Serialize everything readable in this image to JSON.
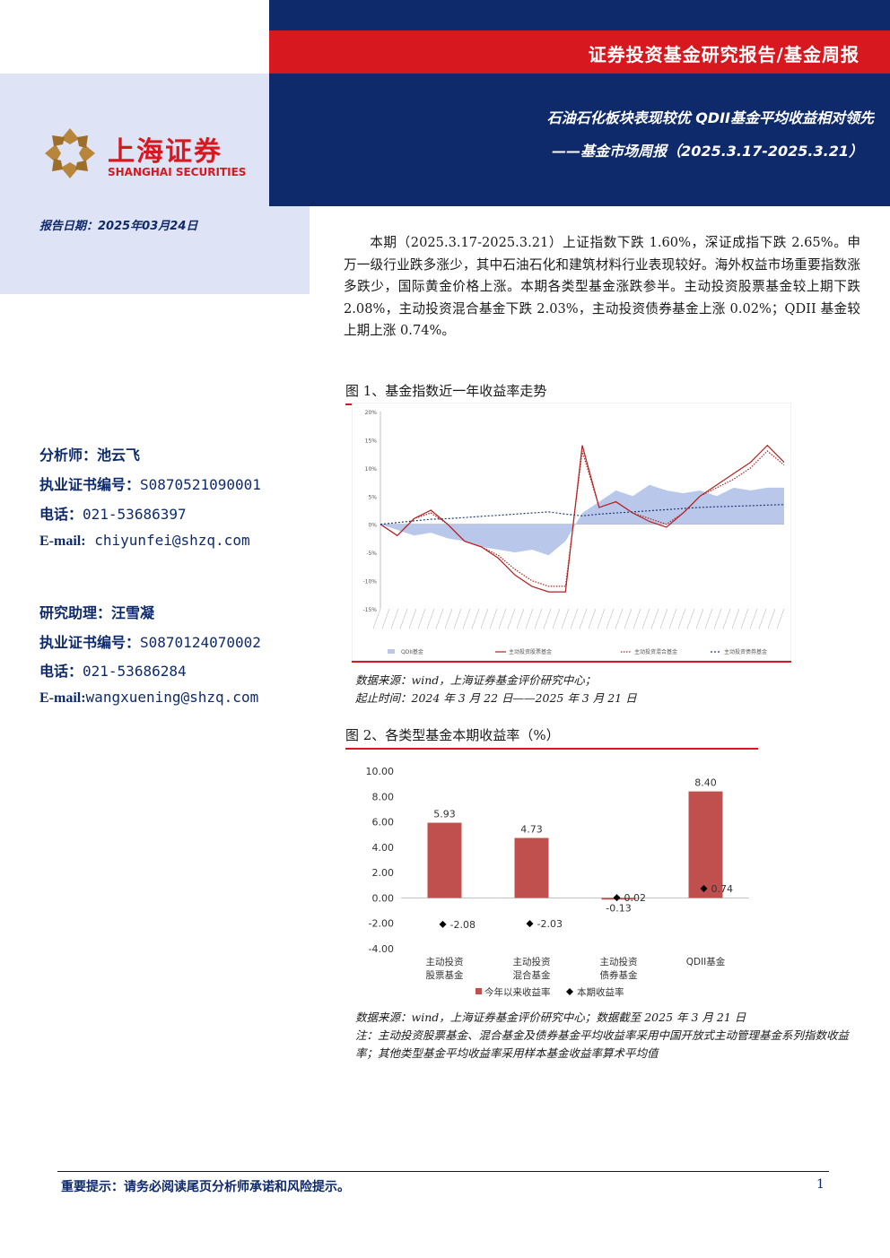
{
  "header": {
    "series_label": "证券投资基金研究报告/基金周报",
    "title": "石油石化板块表现较优 QDII基金平均收益相对领先",
    "subtitle": "——基金市场周报（2025.3.17-2025.3.21）",
    "brand_color": "#0f2a6b",
    "accent_color": "#d7191f"
  },
  "logo": {
    "name_cn": "上海证券",
    "name_en": "SHANGHAI SECURITIES"
  },
  "report_date": "报告日期：2025年03月24日",
  "analysts": [
    {
      "role": "分析师：",
      "name": "池云飞",
      "cert_label": "执业证书编号：",
      "cert": "S0870521090001",
      "phone_label": "电话：",
      "phone": "021-53686397",
      "email_label": "E-mail:",
      "email": "chiyunfei@shzq.com"
    },
    {
      "role": "研究助理：",
      "name": "汪雪凝",
      "cert_label": "执业证书编号：",
      "cert": "S0870124070002",
      "phone_label": "电话：",
      "phone": "021-53686284",
      "email_label": "E-mail:",
      "email": "wangxuening@shzq.com"
    }
  ],
  "summary": "本期（2025.3.17-2025.3.21）上证指数下跌 1.60%，深证成指下跌 2.65%。申万一级行业跌多涨少，其中石油石化和建筑材料行业表现较好。海外权益市场重要指数涨多跌少，国际黄金价格上涨。本期各类型基金涨跌参半。主动投资股票基金较上期下跌 2.08%，主动投资混合基金下跌 2.03%，主动投资债券基金上涨 0.02%；QDII 基金较上期上涨 0.74%。",
  "figure1": {
    "title": "图 1、基金指数近一年收益率走势",
    "source": "数据来源：wind，上海证券基金评价研究中心；",
    "period": "起止时间：2024 年 3 月 22 日——2025 年 3 月 21 日"
  },
  "figure2": {
    "title": "图 2、各类型基金本期收益率（%）",
    "source": "数据来源：wind，上海证券基金评价研究中心；数据截至 2025 年 3 月 21 日",
    "note": "注：主动投资股票基金、混合基金及债券基金平均收益率采用中国开放式主动管理基金系列指数收益率；其他类型基金平均收益率采用样本基金收益率算术平均值"
  },
  "chart_data": [
    {
      "type": "line",
      "title": "",
      "yticks": [
        "20%",
        "15%",
        "10%",
        "5%",
        "0%",
        "-5%",
        "-10%",
        "-15%"
      ],
      "ylim": [
        -15,
        20
      ],
      "series": [
        {
          "name": "QDII基金",
          "style": "area",
          "color": "#b9c8ea",
          "values": [
            0,
            -1,
            -2,
            -1.5,
            -2.5,
            -3,
            -4,
            -4.5,
            -5,
            -4.5,
            -5.5,
            -3,
            2,
            4,
            6,
            5,
            7,
            6,
            5.5,
            6,
            5,
            6.5,
            6,
            6.5,
            6.5
          ]
        },
        {
          "name": "主动投资股票基金",
          "style": "solid",
          "color": "#b22222",
          "values": [
            0,
            -2,
            1,
            2.5,
            0,
            -3,
            -4,
            -6,
            -9,
            -11,
            -12,
            -12,
            14,
            3,
            4,
            2,
            0.5,
            -0.5,
            2,
            5,
            7,
            9,
            11,
            14,
            11
          ]
        },
        {
          "name": "主动投资混合基金",
          "style": "dotted",
          "color": "#b22222",
          "values": [
            0,
            -2,
            1,
            2,
            0,
            -3,
            -4,
            -5.5,
            -8,
            -10,
            -11,
            -11,
            13,
            3,
            4,
            2,
            1,
            0,
            2,
            5,
            6.5,
            8,
            10,
            13,
            10.5
          ]
        },
        {
          "name": "主动投资债券基金",
          "style": "dashed",
          "color": "#1f3a7a",
          "values": [
            0,
            0.3,
            0.6,
            0.9,
            1,
            1.2,
            1.4,
            1.6,
            1.8,
            2,
            2.2,
            1.8,
            1.5,
            1.8,
            2,
            2.2,
            2.4,
            2.6,
            2.8,
            3,
            3.1,
            3.2,
            3.3,
            3.4,
            3.5
          ]
        }
      ]
    },
    {
      "type": "bar",
      "title": "",
      "categories": [
        [
          "主动投资",
          "股票基金"
        ],
        [
          "主动投资",
          "混合基金"
        ],
        [
          "主动投资",
          "债券基金"
        ],
        [
          "QDII基金"
        ]
      ],
      "ylim": [
        -4,
        10
      ],
      "yticks": [
        "10.00",
        "8.00",
        "6.00",
        "4.00",
        "2.00",
        "0.00",
        "-2.00",
        "-4.00"
      ],
      "series": [
        {
          "name": "今年以来收益率",
          "style": "bar",
          "color": "#c0504d",
          "values": [
            5.93,
            4.73,
            -0.13,
            8.4
          ],
          "labels": [
            "5.93",
            "4.73",
            "-0.13",
            "8.40"
          ]
        },
        {
          "name": "本期收益率",
          "style": "marker",
          "color": "#000000",
          "values": [
            -2.08,
            -2.03,
            0.02,
            0.74
          ],
          "labels": [
            "-2.08",
            "-2.03",
            "0.02",
            "0.74"
          ]
        }
      ]
    }
  ],
  "footer": {
    "notice": "重要提示：请务必阅读尾页分析师承诺和风险提示。",
    "page": "1"
  }
}
